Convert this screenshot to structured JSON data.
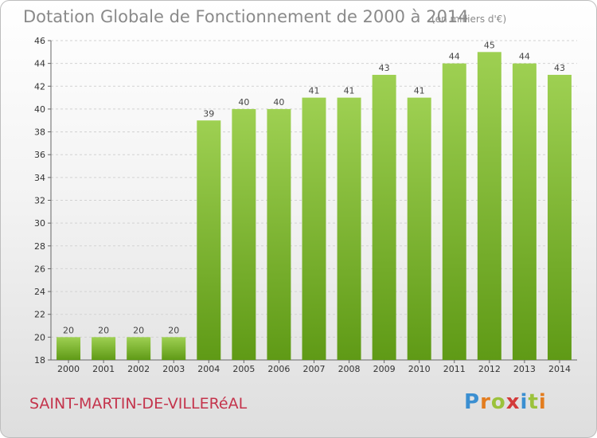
{
  "header": {
    "title": "Dotation Globale de Fonctionnement de 2000 à 2014",
    "subtitle": "(en milliers d'€)"
  },
  "footer": {
    "commune": "SAINT-MARTIN-DE-VILLERéAL",
    "logo_text": "Proxiti"
  },
  "colors": {
    "bar_top": "#9ed052",
    "bar_bottom": "#5f9a16",
    "logo": [
      "#3b8fd1",
      "#e37d1f",
      "#9bc23c",
      "#d33b3b",
      "#3b8fd1",
      "#9bc23c",
      "#e37d1f"
    ]
  },
  "chart_data": {
    "type": "bar",
    "categories": [
      "2000",
      "2001",
      "2002",
      "2003",
      "2004",
      "2005",
      "2006",
      "2007",
      "2008",
      "2009",
      "2010",
      "2011",
      "2012",
      "2013",
      "2014"
    ],
    "values": [
      20,
      20,
      20,
      20,
      39,
      40,
      40,
      41,
      41,
      43,
      41,
      44,
      45,
      44,
      43
    ],
    "title": "Dotation Globale de Fonctionnement de 2000 à 2014",
    "subtitle": "(en milliers d'€)",
    "ylim": [
      18,
      46
    ],
    "yticks": [
      18,
      20,
      22,
      24,
      26,
      28,
      30,
      32,
      34,
      36,
      38,
      40,
      42,
      44,
      46
    ],
    "grid": true,
    "data_labels": true,
    "legend": "none"
  }
}
